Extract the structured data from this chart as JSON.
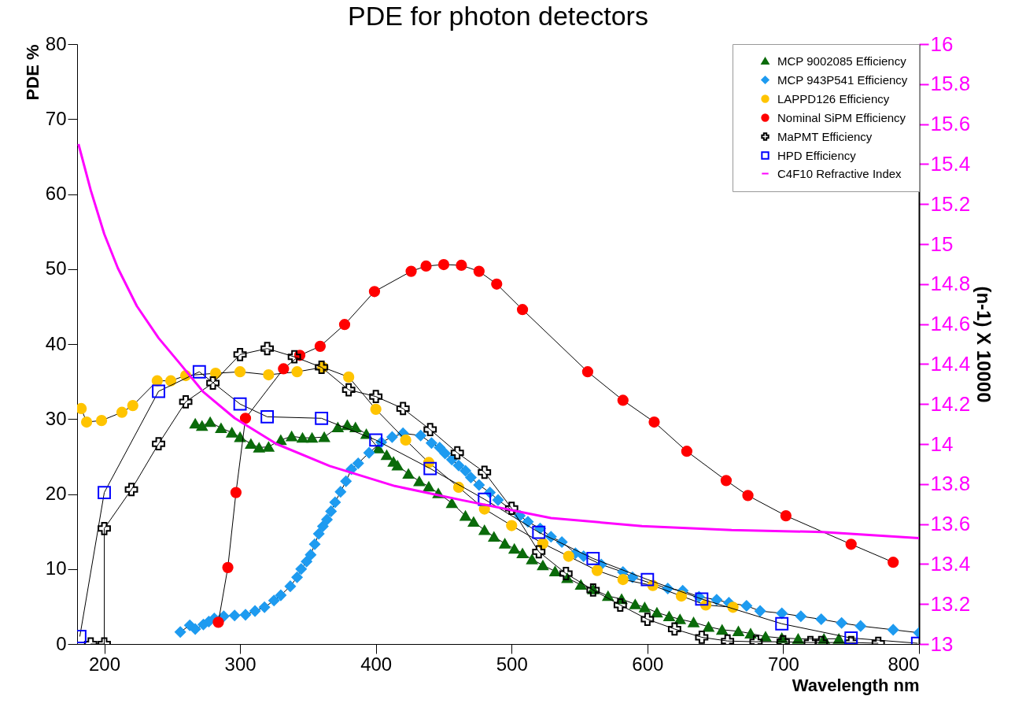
{
  "chart_data": {
    "type": "line",
    "title": "PDE for photon detectors",
    "xlabel": "Wavelength     nm",
    "ylabel": "PDE %",
    "y2label": "(n-1) X 10000",
    "xlim": [
      180,
      800
    ],
    "xticks": [
      200,
      300,
      400,
      500,
      600,
      700,
      800
    ],
    "ylim": [
      0,
      80
    ],
    "yticks": [
      0,
      10,
      20,
      30,
      40,
      50,
      60,
      70,
      80
    ],
    "y2lim": [
      13,
      16
    ],
    "y2ticks": [
      13,
      13.2,
      13.4,
      13.6,
      13.8,
      14,
      14.2,
      14.4,
      14.6,
      14.8,
      15,
      15.2,
      15.4,
      15.6,
      15.8,
      16
    ],
    "grid": false,
    "legend": "top right",
    "line_style": "solid",
    "series": [
      {
        "name": "MCP 9002085 Efficiency",
        "color": "#0b6b0b",
        "marker": "triangle",
        "x": [
          267,
          272,
          278,
          286,
          294,
          300,
          308,
          314,
          321,
          330,
          338,
          346,
          353,
          362,
          372,
          379,
          385,
          393,
          402,
          408,
          413,
          416,
          424,
          432,
          439,
          446,
          456,
          466,
          472,
          480,
          487,
          495,
          502,
          508,
          515,
          523,
          532,
          541,
          551,
          560,
          571,
          581,
          591,
          598,
          607,
          616,
          624,
          634,
          645,
          655,
          667,
          676,
          687,
          699,
          711,
          730,
          741
        ],
        "values": [
          29.4,
          29.1,
          29.6,
          28.8,
          28.2,
          27.6,
          26.7,
          26.2,
          26.3,
          27.2,
          27.7,
          27.5,
          27.5,
          27.6,
          28.9,
          29.2,
          28.9,
          28.0,
          26.1,
          25.2,
          24.3,
          23.8,
          22.7,
          21.7,
          21.0,
          20.1,
          18.8,
          17.1,
          16.3,
          15.2,
          14.3,
          13.4,
          12.7,
          12.1,
          11.3,
          10.5,
          9.7,
          8.8,
          7.9,
          7.3,
          6.4,
          6.0,
          5.3,
          4.9,
          4.2,
          3.7,
          3.3,
          2.9,
          2.3,
          1.9,
          1.7,
          1.4,
          1.0,
          0.8,
          0.7,
          0.7,
          0.7
        ]
      },
      {
        "name": "MCP 943P541 Efficiency",
        "color": "#1e9bf0",
        "marker": "diamond",
        "x": [
          256,
          263,
          267,
          273,
          277,
          281,
          288,
          296,
          304,
          311,
          318,
          325,
          330,
          337,
          342,
          345,
          349,
          352,
          355,
          358,
          361,
          364,
          367,
          370,
          374,
          378,
          382,
          387,
          395,
          404,
          412,
          420,
          433,
          441,
          447,
          451,
          456,
          461,
          466,
          470,
          476,
          484,
          490,
          506,
          512,
          521,
          529,
          537,
          547,
          553,
          566,
          582,
          589,
          615,
          626,
          638,
          651,
          660,
          673,
          683,
          699,
          713,
          728,
          743,
          757,
          781,
          800
        ],
        "values": [
          1.6,
          2.5,
          2.0,
          2.6,
          3.0,
          3.4,
          3.7,
          3.8,
          3.9,
          4.4,
          4.9,
          5.8,
          6.5,
          7.7,
          8.9,
          10.0,
          11.0,
          11.9,
          13.3,
          14.7,
          15.7,
          16.6,
          17.7,
          18.9,
          20.3,
          21.7,
          23.3,
          24.1,
          25.5,
          26.9,
          27.6,
          28.1,
          27.8,
          26.8,
          26.2,
          25.4,
          24.6,
          23.8,
          23.1,
          22.2,
          21.2,
          20.2,
          19.2,
          17.1,
          16.3,
          15.4,
          14.3,
          13.6,
          12.1,
          11.7,
          10.6,
          9.6,
          8.9,
          7.4,
          7.1,
          6.3,
          5.9,
          5.5,
          5.1,
          4.4,
          4.1,
          3.7,
          3.3,
          2.8,
          2.4,
          1.9,
          1.5
        ]
      },
      {
        "name": "LAPPD126 Efficiency",
        "color": "#ffc400",
        "marker": "circle",
        "x": [
          183,
          187,
          198,
          213,
          221,
          239,
          249,
          260,
          282,
          300,
          321,
          342,
          361,
          380,
          400,
          422,
          439,
          461,
          480,
          500,
          523,
          542,
          563,
          582,
          604,
          625,
          643,
          663
        ],
        "values": [
          31.4,
          29.6,
          29.8,
          30.9,
          31.8,
          35.1,
          35.1,
          35.8,
          36.1,
          36.3,
          35.9,
          36.3,
          36.9,
          35.6,
          31.3,
          27.2,
          24.2,
          20.9,
          18.0,
          15.8,
          13.4,
          11.7,
          9.8,
          8.6,
          7.8,
          6.4,
          5.2,
          4.9
        ]
      },
      {
        "name": "Nominal SiPM Efficiency",
        "color": "#ff0000",
        "marker": "circle",
        "x": [
          284,
          291,
          297,
          304,
          332,
          344,
          359,
          377,
          399,
          426,
          437,
          450,
          463,
          476,
          489,
          508,
          556,
          582,
          605,
          629,
          658,
          674,
          702,
          750,
          781
        ],
        "values": [
          2.9,
          10.2,
          20.2,
          30.1,
          36.7,
          38.5,
          39.7,
          42.6,
          47.0,
          49.7,
          50.4,
          50.6,
          50.5,
          49.7,
          48.0,
          44.6,
          36.3,
          32.5,
          29.6,
          25.7,
          21.8,
          19.8,
          17.1,
          13.3,
          10.9
        ]
      },
      {
        "name": " MaPMT Efficiency",
        "color": "#000000",
        "marker": "cross",
        "x": [
          190,
          200,
          200,
          220,
          240,
          260,
          280,
          300,
          320,
          340,
          360,
          380,
          400,
          420,
          440,
          460,
          480,
          500,
          520,
          540,
          560,
          580,
          600,
          620,
          640,
          659,
          680,
          700,
          720,
          728,
          750,
          770
        ],
        "values": [
          0,
          0,
          15.4,
          20.6,
          26.7,
          32.3,
          34.8,
          38.6,
          39.4,
          38.3,
          36.9,
          33.9,
          33.0,
          31.4,
          28.6,
          25.5,
          22.9,
          18.1,
          12.3,
          9.4,
          7.2,
          5.2,
          3.3,
          2.0,
          0.9,
          0.4,
          0.3,
          0.3,
          0.2,
          0.2,
          0.2,
          0.1
        ]
      },
      {
        "name": " HPD Efficiency",
        "color": "#0000ff",
        "marker": "square",
        "x": [
          182,
          200,
          240,
          270,
          300,
          320,
          360,
          400,
          440,
          480,
          520,
          560,
          600,
          640,
          699,
          750,
          799
        ],
        "values": [
          1.0,
          20.2,
          33.7,
          36.3,
          32.0,
          30.3,
          30.1,
          27.2,
          23.4,
          19.3,
          14.9,
          11.4,
          8.6,
          6.0,
          2.7,
          0.8,
          0.1
        ]
      },
      {
        "name": "C4F10  Refractive Index",
        "color": "#ff00ff",
        "marker": "none",
        "axis": "y2",
        "x": [
          181,
          190,
          200,
          210,
          224,
          240,
          256,
          273,
          296,
          327,
          366,
          414,
          463,
          529,
          596,
          662,
          729,
          800
        ],
        "values": [
          15.5,
          15.27,
          15.05,
          14.88,
          14.69,
          14.53,
          14.4,
          14.26,
          14.13,
          14.0,
          13.89,
          13.79,
          13.72,
          13.63,
          13.59,
          13.57,
          13.56,
          13.53
        ]
      }
    ]
  }
}
